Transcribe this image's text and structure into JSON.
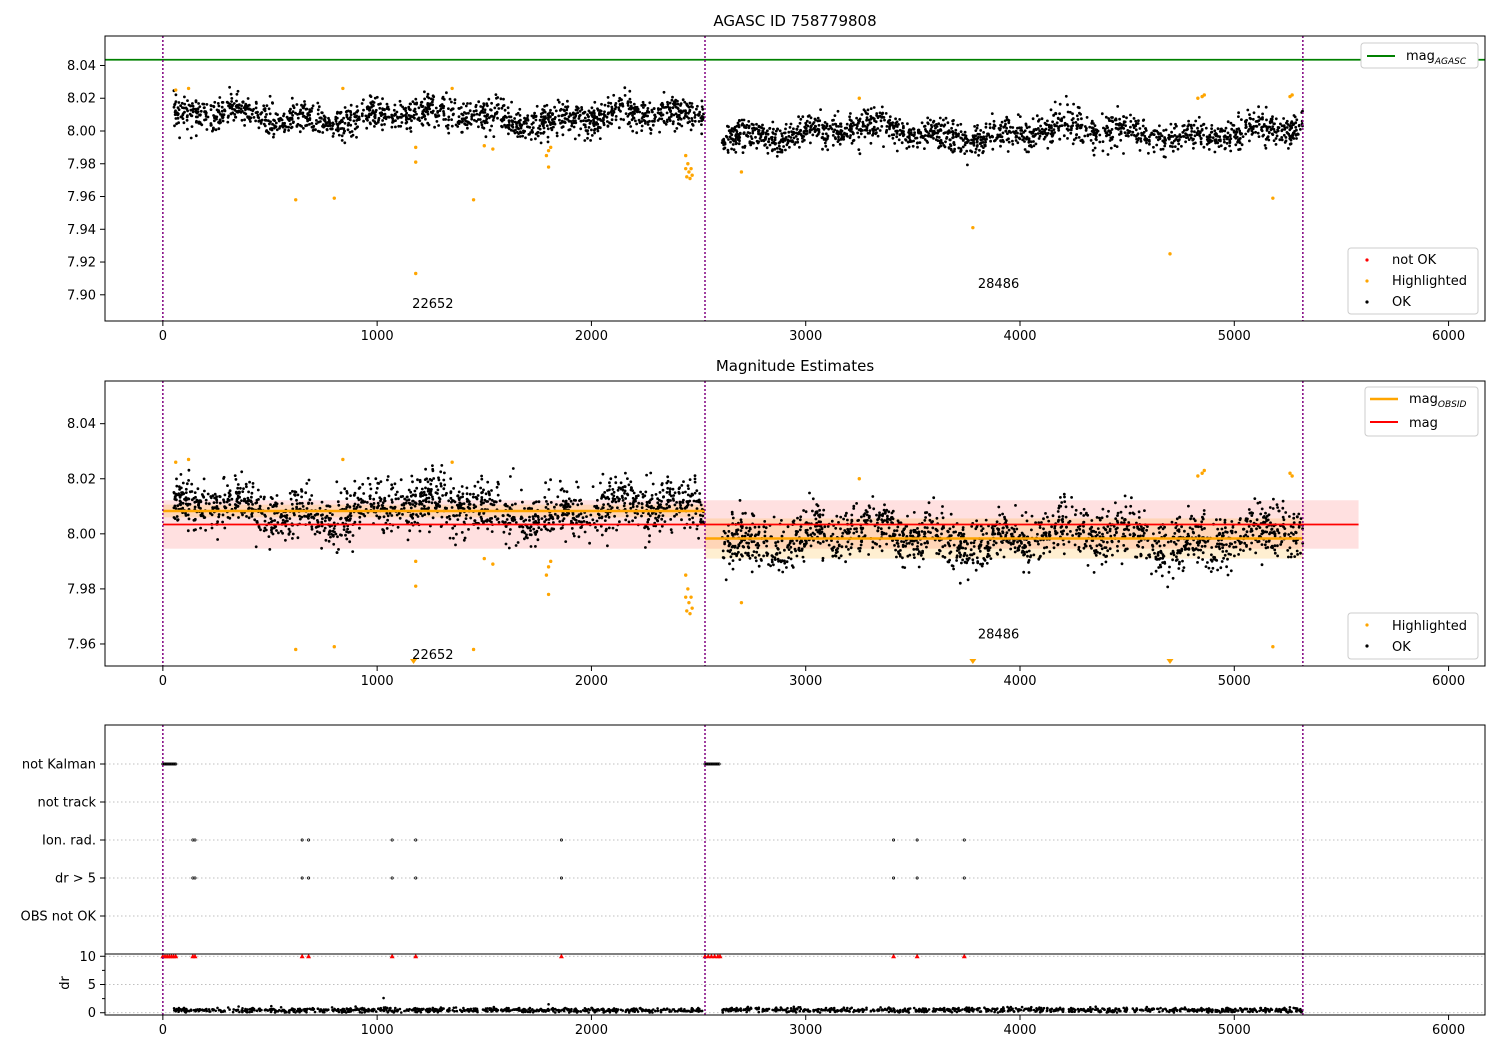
{
  "chart_data": [
    {
      "type": "scatter",
      "title": "AGASC ID 758779808",
      "xlim": [
        -270,
        6170
      ],
      "ylim": [
        7.884,
        8.058
      ],
      "xticks": [
        0,
        1000,
        2000,
        3000,
        4000,
        5000,
        6000
      ],
      "yticks": [
        7.9,
        7.92,
        7.94,
        7.96,
        7.98,
        8.0,
        8.02,
        8.04
      ],
      "ytick_labels": [
        "7.90",
        "7.92",
        "7.94",
        "7.96",
        "7.98",
        "8.00",
        "8.02",
        "8.04"
      ],
      "obs_boundaries": [
        0,
        2530,
        5320
      ],
      "obs_labels": [
        {
          "text": "22652",
          "x": 1260,
          "y": 7.892
        },
        {
          "text": "28486",
          "x": 3900,
          "y": 7.904
        }
      ],
      "mag_agasc": 8.0435,
      "legend_top": [
        {
          "name": "mag",
          "sub": "AGASC",
          "color": "#008000"
        }
      ],
      "legend_bottom": [
        {
          "name": "not OK",
          "color": "#ff0000"
        },
        {
          "name": "Highlighted",
          "color": "#ffa500"
        },
        {
          "name": "OK",
          "color": "#000000"
        }
      ],
      "ok_segments": [
        {
          "x0": 50,
          "x1": 2525,
          "mean": 8.0085,
          "spread": 0.0095,
          "n": 1500
        },
        {
          "x0": 2610,
          "x1": 5320,
          "mean": 7.999,
          "spread": 0.0095,
          "n": 1600
        }
      ],
      "highlighted": [
        [
          60,
          8.025
        ],
        [
          120,
          8.026
        ],
        [
          620,
          7.958
        ],
        [
          800,
          7.959
        ],
        [
          840,
          8.026
        ],
        [
          1180,
          7.913
        ],
        [
          1180,
          7.981
        ],
        [
          1180,
          7.99
        ],
        [
          1350,
          8.026
        ],
        [
          1450,
          7.958
        ],
        [
          1500,
          7.991
        ],
        [
          1540,
          7.989
        ],
        [
          1790,
          7.985
        ],
        [
          1800,
          7.978
        ],
        [
          1800,
          7.988
        ],
        [
          1810,
          7.99
        ],
        [
          2440,
          7.985
        ],
        [
          2440,
          7.977
        ],
        [
          2445,
          7.972
        ],
        [
          2450,
          7.98
        ],
        [
          2455,
          7.975
        ],
        [
          2460,
          7.971
        ],
        [
          2465,
          7.977
        ],
        [
          2470,
          7.973
        ],
        [
          2700,
          7.975
        ],
        [
          3250,
          8.02
        ],
        [
          3780,
          7.941
        ],
        [
          4700,
          7.925
        ],
        [
          4830,
          8.02
        ],
        [
          4850,
          8.021
        ],
        [
          4860,
          8.022
        ],
        [
          5180,
          7.959
        ],
        [
          5260,
          8.021
        ],
        [
          5270,
          8.022
        ]
      ]
    },
    {
      "type": "scatter",
      "title": "Magnitude Estimates",
      "xlim": [
        -270,
        6170
      ],
      "ylim": [
        7.952,
        8.0555
      ],
      "xticks": [
        0,
        1000,
        2000,
        3000,
        4000,
        5000,
        6000
      ],
      "yticks": [
        7.96,
        7.98,
        8.0,
        8.02,
        8.04
      ],
      "ytick_labels": [
        "7.96",
        "7.98",
        "8.00",
        "8.02",
        "8.04"
      ],
      "obs_boundaries": [
        0,
        2530,
        5320
      ],
      "obs_labels": [
        {
          "text": "22652",
          "x": 1260,
          "y": 7.9545
        },
        {
          "text": "28486",
          "x": 3900,
          "y": 7.962
        }
      ],
      "mag": 8.0034,
      "mag_band": [
        7.9946,
        8.0122
      ],
      "mag_xrange": [
        0,
        5580
      ],
      "mag_obsid": [
        {
          "x0": 0,
          "x1": 2530,
          "value": 8.0083,
          "band": [
            8.006,
            8.0106
          ]
        },
        {
          "x0": 2530,
          "x1": 5320,
          "value": 7.9983,
          "band": [
            7.991,
            8.0056
          ]
        }
      ],
      "legend_top": [
        {
          "name": "mag",
          "sub": "OBSID",
          "color": "#ffa500"
        },
        {
          "name": "mag",
          "sub": "",
          "color": "#ff0000"
        }
      ],
      "legend_bottom": [
        {
          "name": "Highlighted",
          "color": "#ffa500"
        },
        {
          "name": "OK",
          "color": "#000000"
        }
      ],
      "ok_segments": [
        {
          "x0": 50,
          "x1": 2525,
          "mean": 8.0085,
          "spread": 0.0095,
          "n": 1500
        },
        {
          "x0": 2610,
          "x1": 5320,
          "mean": 7.999,
          "spread": 0.0095,
          "n": 1600
        }
      ],
      "highlighted": [
        [
          60,
          8.026
        ],
        [
          120,
          8.027
        ],
        [
          620,
          7.958
        ],
        [
          800,
          7.959
        ],
        [
          840,
          8.027
        ],
        [
          1180,
          7.981
        ],
        [
          1180,
          7.99
        ],
        [
          1350,
          8.026
        ],
        [
          1450,
          7.958
        ],
        [
          1500,
          7.991
        ],
        [
          1540,
          7.989
        ],
        [
          1790,
          7.985
        ],
        [
          1800,
          7.978
        ],
        [
          1800,
          7.988
        ],
        [
          1810,
          7.99
        ],
        [
          2440,
          7.985
        ],
        [
          2440,
          7.977
        ],
        [
          2445,
          7.972
        ],
        [
          2450,
          7.98
        ],
        [
          2455,
          7.975
        ],
        [
          2460,
          7.971
        ],
        [
          2465,
          7.977
        ],
        [
          2470,
          7.973
        ],
        [
          2700,
          7.975
        ],
        [
          3250,
          8.02
        ],
        [
          4830,
          8.021
        ],
        [
          4850,
          8.022
        ],
        [
          4860,
          8.023
        ],
        [
          5180,
          7.959
        ],
        [
          5260,
          8.022
        ],
        [
          5270,
          8.021
        ]
      ],
      "clipped_low": [
        1170,
        3780,
        4700
      ]
    },
    {
      "type": "scatter",
      "title": "",
      "xlim": [
        -270,
        6170
      ],
      "xticks": [
        0,
        1000,
        2000,
        3000,
        4000,
        5000,
        6000
      ],
      "obs_boundaries": [
        0,
        2530,
        5320
      ],
      "flag_rows": [
        "not Kalman",
        "not track",
        "Ion. rad.",
        "dr > 5",
        "OBS not OK"
      ],
      "flags": {
        "not Kalman": [
          [
            0,
            60
          ],
          [
            2530,
            2600
          ]
        ],
        "not track": [],
        "Ion. rad.": [
          140,
          150,
          650,
          680,
          1070,
          1180,
          1860,
          3410,
          3520,
          3740
        ],
        "dr > 5": [
          140,
          150,
          650,
          680,
          1070,
          1180,
          1860,
          3410,
          3520,
          3740
        ],
        "OBS not OK": []
      },
      "dr_axis": {
        "label": "dr",
        "ylim": [
          -0.4,
          10.4
        ],
        "yticks": [
          0,
          5,
          10
        ],
        "ytick_labels": [
          "0",
          "5",
          "10"
        ],
        "clip_value": 10,
        "clipped_x": [
          0,
          10,
          20,
          30,
          40,
          50,
          60,
          140,
          150,
          650,
          680,
          1070,
          1180,
          1860,
          2530,
          2545,
          2560,
          2575,
          2590,
          2600,
          3410,
          3520,
          3740
        ],
        "segments": [
          {
            "x0": 50,
            "x1": 2525,
            "mean": 0.45,
            "spread": 0.2,
            "n": 700
          },
          {
            "x0": 2610,
            "x1": 5320,
            "mean": 0.5,
            "spread": 0.2,
            "n": 750
          }
        ],
        "outliers": [
          [
            1030,
            2.6
          ],
          [
            1800,
            1.5
          ]
        ]
      }
    }
  ]
}
